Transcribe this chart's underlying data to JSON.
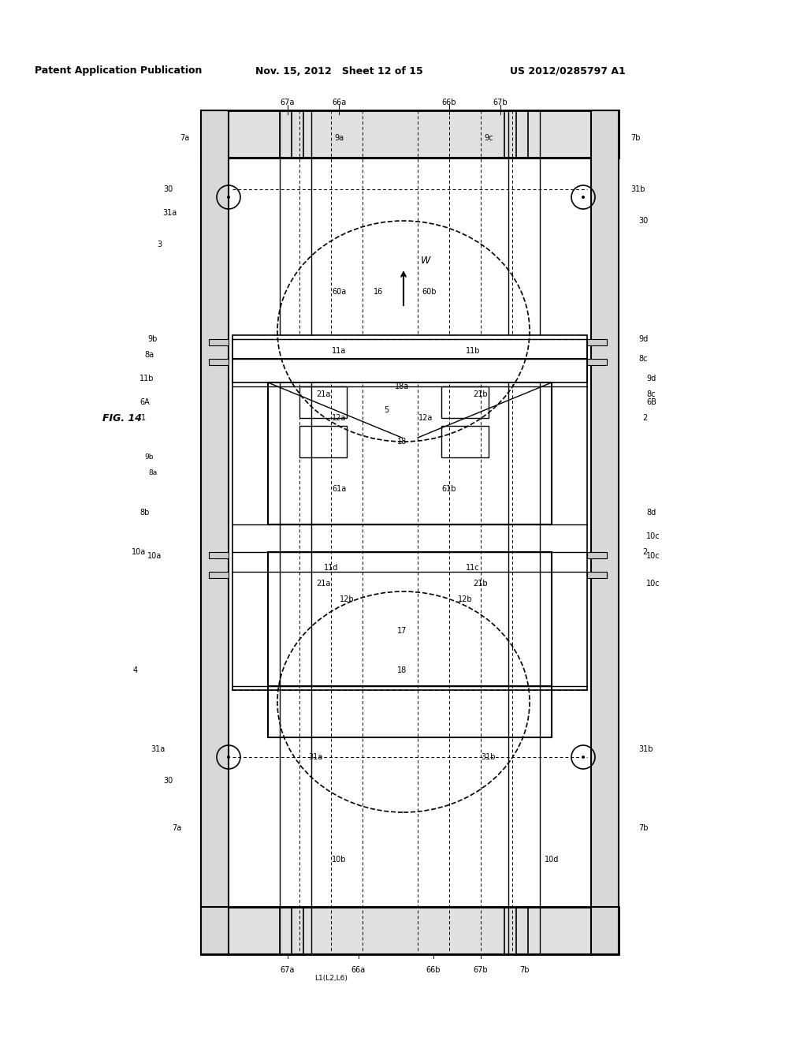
{
  "title_left": "Patent Application Publication",
  "title_mid": "Nov. 15, 2012  Sheet 12 of 15",
  "title_right": "US 2012/0285797 A1",
  "fig_label": "FIG. 14",
  "background": "#ffffff",
  "line_color": "#000000",
  "fig_width": 10.24,
  "fig_height": 13.2
}
